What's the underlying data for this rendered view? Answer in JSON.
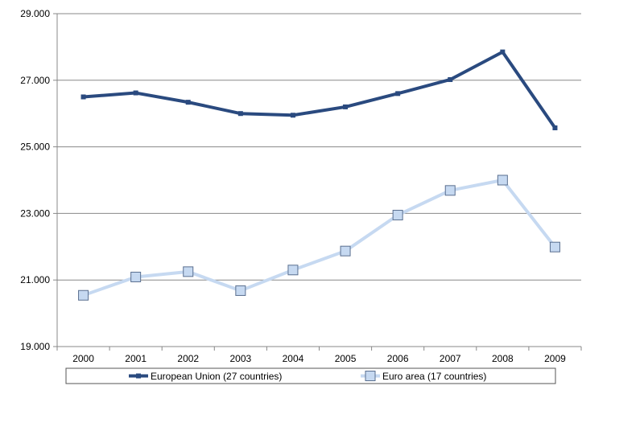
{
  "chart_data": {
    "type": "line",
    "title": "",
    "xlabel": "",
    "ylabel": "",
    "categories": [
      "2000",
      "2001",
      "2002",
      "2003",
      "2004",
      "2005",
      "2006",
      "2007",
      "2008",
      "2009"
    ],
    "ylim": [
      19000,
      29000
    ],
    "yticks": [
      19000,
      21000,
      23000,
      25000,
      27000,
      29000
    ],
    "ytick_labels": [
      "19.000",
      "21.000",
      "23.000",
      "25.000",
      "27.000",
      "29.000"
    ],
    "grid": true,
    "legend_position": "bottom",
    "series": [
      {
        "name": "European Union (27 countries)",
        "color": "#2a4a7f",
        "marker": "small-square",
        "values": [
          26500,
          26620,
          26340,
          26000,
          25950,
          26200,
          26600,
          27020,
          27850,
          25570
        ]
      },
      {
        "name": "Euro area (17 countries)",
        "color": "#c6d9f1",
        "marker": "large-square",
        "values": [
          20540,
          21090,
          21250,
          20680,
          21300,
          21870,
          22950,
          23690,
          24000,
          21990
        ]
      }
    ]
  }
}
